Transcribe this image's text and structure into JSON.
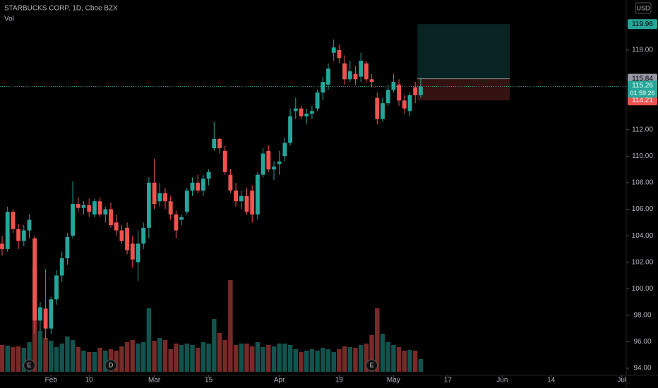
{
  "chart_data": {
    "type": "candlestick",
    "title": "STARBUCKS CORP, 1D, Cboe BZX",
    "volume_label": "Vol",
    "currency": "USD",
    "up_color": "#26a69a",
    "down_color": "#ef5350",
    "open": [
      103.4,
      103.0,
      105.8,
      104.5,
      103.6,
      104.4,
      103.8,
      97.6,
      98.5,
      97.0,
      99.2,
      101.0,
      102.3,
      104.0,
      106.4,
      106.1,
      106.3,
      105.6,
      106.6,
      105.6,
      106.0,
      105.0,
      104.4,
      104.6,
      103.4,
      102.0,
      103.4,
      104.6,
      108.0,
      106.6,
      107.2,
      106.6,
      105.6,
      105.2,
      105.8,
      107.4,
      108.0,
      107.4,
      108.3,
      110.6,
      111.3,
      110.4,
      108.6,
      107.4,
      106.6,
      107.0,
      107.4,
      105.6,
      108.6,
      110.4,
      109.0,
      109.4,
      110.0,
      111.0,
      113.4,
      113.6,
      113.0,
      113.2,
      113.6,
      114.8,
      115.4,
      117.8,
      118.0,
      117.0,
      115.8,
      116.2,
      116.0,
      117.0,
      115.8,
      114.4,
      112.8,
      114.0,
      115.0,
      115.4,
      114.2,
      113.4,
      115.2,
      114.6
    ],
    "high": [
      104.0,
      106.2,
      106.0,
      104.9,
      104.8,
      105.6,
      104.0,
      99.0,
      101.5,
      99.4,
      101.4,
      102.8,
      104.2,
      108.1,
      106.9,
      106.6,
      106.8,
      106.8,
      106.9,
      106.2,
      106.5,
      105.6,
      104.8,
      105.0,
      104.0,
      104.4,
      105.0,
      108.4,
      109.8,
      108.0,
      107.6,
      107.0,
      105.9,
      105.6,
      107.6,
      108.4,
      108.6,
      108.6,
      109.0,
      112.6,
      111.4,
      110.8,
      109.0,
      108.0,
      107.4,
      107.6,
      107.8,
      108.8,
      110.6,
      110.8,
      109.6,
      110.4,
      111.4,
      113.6,
      114.4,
      113.8,
      113.6,
      113.8,
      115.0,
      116.0,
      117.0,
      118.8,
      118.4,
      117.6,
      117.2,
      116.8,
      117.8,
      117.2,
      116.2,
      114.8,
      114.4,
      115.4,
      116.2,
      115.8,
      114.6,
      114.8,
      115.6,
      115.9
    ],
    "low": [
      102.5,
      102.8,
      104.2,
      103.0,
      103.2,
      103.8,
      96.6,
      96.8,
      96.2,
      96.6,
      98.8,
      100.5,
      101.8,
      103.8,
      105.8,
      105.6,
      105.4,
      105.4,
      105.4,
      105.0,
      104.6,
      104.0,
      103.4,
      102.6,
      101.6,
      100.6,
      103.0,
      103.8,
      106.0,
      106.2,
      106.0,
      105.2,
      103.8,
      104.8,
      105.6,
      107.0,
      107.2,
      107.0,
      107.8,
      110.4,
      110.2,
      108.6,
      107.2,
      106.2,
      106.0,
      105.6,
      105.0,
      105.2,
      108.4,
      108.8,
      108.2,
      108.6,
      109.6,
      110.8,
      112.8,
      112.8,
      112.4,
      112.8,
      113.4,
      114.2,
      115.0,
      117.2,
      117.0,
      115.4,
      115.6,
      115.4,
      115.6,
      115.6,
      115.2,
      112.4,
      112.6,
      113.8,
      114.8,
      113.8,
      113.2,
      113.0,
      114.0,
      114.4
    ],
    "close": [
      103.0,
      105.8,
      104.5,
      103.6,
      104.4,
      105.2,
      97.6,
      98.6,
      97.0,
      99.2,
      101.0,
      102.3,
      103.9,
      106.4,
      106.1,
      106.3,
      105.8,
      106.6,
      105.6,
      106.0,
      104.8,
      104.4,
      103.6,
      102.9,
      102.2,
      103.4,
      104.6,
      108.0,
      106.4,
      107.2,
      106.6,
      105.6,
      104.4,
      105.4,
      107.4,
      108.0,
      107.4,
      108.3,
      108.8,
      111.3,
      110.6,
      108.8,
      107.4,
      106.6,
      107.0,
      105.8,
      105.6,
      108.6,
      110.2,
      109.0,
      109.2,
      109.6,
      111.0,
      113.0,
      113.6,
      113.0,
      113.2,
      113.4,
      114.8,
      115.6,
      116.6,
      118.2,
      117.4,
      115.8,
      116.4,
      115.8,
      117.2,
      115.8,
      115.6,
      112.8,
      114.0,
      115.0,
      115.6,
      114.2,
      113.6,
      114.6,
      114.6,
      115.26
    ],
    "volume": [
      7.6,
      7.4,
      7.0,
      7.2,
      6.8,
      8.4,
      29.6,
      11.6,
      9.6,
      8.8,
      7.0,
      8.0,
      10.0,
      9.0,
      7.0,
      6.0,
      5.6,
      5.6,
      6.8,
      6.0,
      6.4,
      6.0,
      7.2,
      8.4,
      9.0,
      8.0,
      8.4,
      18.0,
      8.8,
      9.6,
      9.0,
      6.4,
      8.0,
      7.6,
      8.0,
      7.6,
      6.8,
      8.4,
      8.0,
      15.0,
      11.0,
      9.0,
      26.0,
      7.6,
      8.0,
      8.0,
      7.2,
      8.4,
      7.0,
      7.6,
      7.2,
      8.0,
      8.0,
      7.6,
      6.4,
      5.6,
      6.0,
      6.4,
      6.0,
      6.8,
      6.4,
      5.6,
      6.4,
      7.2,
      7.0,
      6.8,
      7.6,
      8.0,
      10.4,
      18.0,
      10.8,
      8.4,
      7.6,
      7.0,
      6.0,
      6.2,
      6.0,
      3.6
    ],
    "volume_lim": [
      0,
      30
    ],
    "ylim": [
      93.47,
      121.78
    ],
    "yticks": [
      {
        "value": 94,
        "label": "94.00"
      },
      {
        "value": 96,
        "label": "96.00"
      },
      {
        "value": 98,
        "label": "98.00"
      },
      {
        "value": 100,
        "label": "100.00"
      },
      {
        "value": 102,
        "label": "102.00"
      },
      {
        "value": 104,
        "label": "104.00"
      },
      {
        "value": 106,
        "label": "106.00"
      },
      {
        "value": 108,
        "label": "108.00"
      },
      {
        "value": 110,
        "label": "110.00"
      },
      {
        "value": 112,
        "label": "112.00"
      },
      {
        "value": 118,
        "label": "118.00"
      }
    ],
    "xlim": [
      -0.39,
      114.81
    ],
    "xticks": [
      {
        "value": 9,
        "label": "Feb"
      },
      {
        "value": 16,
        "label": "10"
      },
      {
        "value": 28,
        "label": "Mar"
      },
      {
        "value": 38,
        "label": "15"
      },
      {
        "value": 51,
        "label": "Apr"
      },
      {
        "value": 62,
        "label": "19"
      },
      {
        "value": 72,
        "label": "May"
      },
      {
        "value": 82,
        "label": "17"
      },
      {
        "value": 92,
        "label": "Jun"
      },
      {
        "value": 101,
        "label": "14"
      },
      {
        "value": 114,
        "label": "Jul"
      }
    ],
    "events": [
      {
        "index": 5,
        "label": "E"
      },
      {
        "index": 20,
        "label": "D"
      },
      {
        "index": 68,
        "label": "E"
      }
    ],
    "position": {
      "start_index": 76.4,
      "end_index": 93.4,
      "target": {
        "value": 119.96,
        "label": "119.96"
      },
      "entry": {
        "value": 115.84,
        "label": "115.84"
      },
      "stop": {
        "value": 114.21,
        "label": "114.21"
      }
    },
    "last_price": {
      "value": 115.26,
      "label": "115.26",
      "countdown": "01:59:26"
    }
  }
}
